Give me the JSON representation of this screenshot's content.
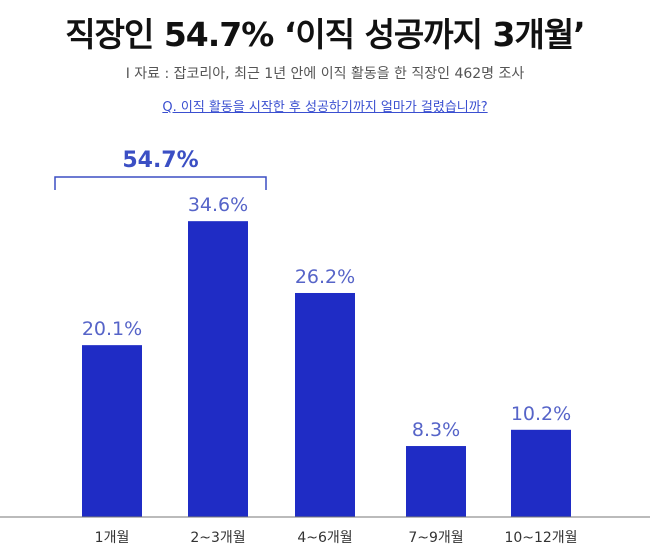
{
  "header": {
    "title": "직장인 54.7% ‘이직 성공까지 3개월’",
    "source": "I 자료 : 잡코리아,  최근 1년 안에 이직 활동을 한 직장인 462명 조사",
    "question": "Q. 이직 활동을 시작한 후 성공하기까지 얼마가 걸렸습니까?"
  },
  "colors": {
    "bar": "#1f2cc5",
    "value_label": "#5664c8",
    "bracket": "#3b4fc4",
    "axis": "#777777",
    "tick_label": "#333333"
  },
  "chart_data": {
    "type": "bar",
    "categories": [
      "1개월",
      "2~3개월",
      "4~6개월",
      "7~9개월",
      "10~12개월"
    ],
    "values": [
      20.1,
      34.6,
      26.2,
      8.3,
      10.2
    ],
    "value_labels": [
      "20.1%",
      "34.6%",
      "26.2%",
      "8.3%",
      "10.2%"
    ],
    "ylim": [
      0,
      40
    ],
    "annotation": {
      "label": "54.7%",
      "spans_categories": [
        0,
        1
      ]
    }
  }
}
